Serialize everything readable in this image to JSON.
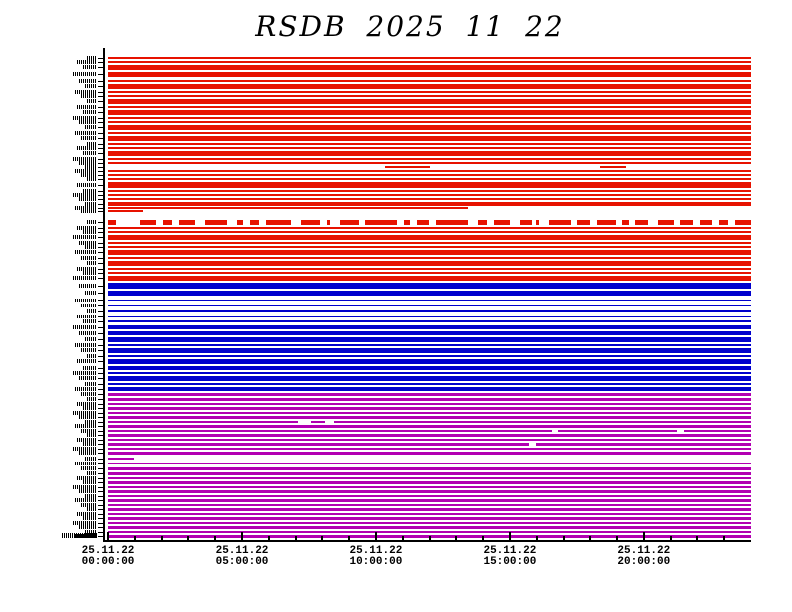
{
  "title": "RSDB 2025 11 22",
  "chart_data": {
    "type": "heatmap",
    "title": "RSDB 2025 11 22",
    "date": "25.11.22",
    "description": "Channel data-availability raster: one thin horizontal bar per channel, full day 00:00-24:00, three station groups colored red, blue and magenta; white stretches mark missing data",
    "colors": {
      "groups": [
        "#e71200",
        "#0000cd",
        "#b200b2"
      ],
      "axis": "#000000",
      "background": "#ffffff"
    },
    "x_axis": {
      "total_hours": 24,
      "minor_tick_every_hours": 1,
      "major_tick_hours": [
        0,
        5,
        10,
        15,
        20
      ],
      "tick_labels": [
        {
          "date": "25.11.22",
          "time": "00:00:00"
        },
        {
          "date": "25.11.22",
          "time": "05:00:00"
        },
        {
          "date": "25.11.22",
          "time": "10:00:00"
        },
        {
          "date": "25.11.22",
          "time": "15:00:00"
        },
        {
          "date": "25.11.22",
          "time": "20:00:00"
        }
      ]
    },
    "y_axis": {
      "row_count": 95,
      "channel_labels_illegible": true,
      "note": "tiny station/channel codes rendered ~3px tall, not readable at source resolution"
    },
    "row_format": "[group_index, bar_height_px, gap_after_px, optional coverage segments as fractions of 24h or the keyword dash]",
    "rows": [
      [
        0,
        2,
        2
      ],
      [
        0,
        2,
        2
      ],
      [
        0,
        5,
        2
      ],
      [
        0,
        5,
        3
      ],
      [
        0,
        2,
        2
      ],
      [
        0,
        5,
        2
      ],
      [
        0,
        2,
        2
      ],
      [
        0,
        2,
        2
      ],
      [
        0,
        5,
        2
      ],
      [
        0,
        2,
        2
      ],
      [
        0,
        5,
        2
      ],
      [
        0,
        2,
        2
      ],
      [
        0,
        2,
        2
      ],
      [
        0,
        5,
        2
      ],
      [
        0,
        2,
        2
      ],
      [
        0,
        5,
        2
      ],
      [
        0,
        2,
        2
      ],
      [
        0,
        2,
        2
      ],
      [
        0,
        5,
        2
      ],
      [
        0,
        2,
        2
      ],
      [
        0,
        2,
        2
      ],
      [
        0,
        2,
        2,
        [
          [
            0.43,
            0.5
          ],
          [
            0.765,
            0.805
          ]
        ]
      ],
      [
        0,
        2,
        2
      ],
      [
        0,
        2,
        2
      ],
      [
        0,
        2,
        2
      ],
      [
        0,
        6,
        2
      ],
      [
        0,
        2,
        2
      ],
      [
        0,
        2,
        2
      ],
      [
        0,
        2,
        2
      ],
      [
        0,
        4,
        1
      ],
      [
        0,
        2,
        1,
        [
          [
            0,
            0.56
          ]
        ]
      ],
      [
        0,
        2,
        8,
        [
          [
            0,
            0.055
          ]
        ]
      ],
      [
        0,
        5,
        2,
        "dash"
      ],
      [
        0,
        2,
        2
      ],
      [
        0,
        2,
        2
      ],
      [
        0,
        5,
        2
      ],
      [
        0,
        2,
        2
      ],
      [
        0,
        2,
        2
      ],
      [
        0,
        5,
        2
      ],
      [
        0,
        2,
        2
      ],
      [
        0,
        5,
        2
      ],
      [
        0,
        2,
        2
      ],
      [
        0,
        2,
        2
      ],
      [
        0,
        5,
        2
      ],
      [
        1,
        6,
        2
      ],
      [
        1,
        5,
        4
      ],
      [
        1,
        1,
        4
      ],
      [
        1,
        1,
        4
      ],
      [
        1,
        2,
        4
      ],
      [
        1,
        1,
        3
      ],
      [
        1,
        2,
        3
      ],
      [
        1,
        4,
        2
      ],
      [
        1,
        4,
        2
      ],
      [
        1,
        5,
        2
      ],
      [
        1,
        2,
        2
      ],
      [
        1,
        5,
        2
      ],
      [
        1,
        2,
        2
      ],
      [
        1,
        5,
        2
      ],
      [
        1,
        4,
        2
      ],
      [
        1,
        2,
        2
      ],
      [
        1,
        5,
        2
      ],
      [
        1,
        2,
        2
      ],
      [
        1,
        4,
        2
      ],
      [
        2,
        3,
        2
      ],
      [
        2,
        3,
        2
      ],
      [
        2,
        2,
        2
      ],
      [
        2,
        3,
        2
      ],
      [
        2,
        2,
        2
      ],
      [
        2,
        3,
        2
      ],
      [
        2,
        2,
        2,
        [
          [
            0,
            0.295
          ],
          [
            0.315,
            0.338
          ],
          [
            0.352,
            1
          ]
        ]
      ],
      [
        2,
        3,
        2
      ],
      [
        2,
        2,
        2,
        [
          [
            0,
            0.69
          ],
          [
            0.7,
            0.885
          ],
          [
            0.895,
            1
          ]
        ]
      ],
      [
        2,
        3,
        2
      ],
      [
        2,
        2,
        2
      ],
      [
        2,
        3,
        2,
        [
          [
            0,
            0.655
          ],
          [
            0.665,
            1
          ]
        ]
      ],
      [
        2,
        2,
        2
      ],
      [
        2,
        3,
        3
      ],
      [
        2,
        2,
        3,
        [
          [
            0,
            0.04
          ]
        ]
      ],
      [
        2,
        1,
        3
      ],
      [
        2,
        3,
        2
      ],
      [
        2,
        3,
        2
      ],
      [
        2,
        2,
        2
      ],
      [
        2,
        3,
        2
      ],
      [
        2,
        2,
        2
      ],
      [
        2,
        3,
        2
      ],
      [
        2,
        2,
        2
      ],
      [
        2,
        3,
        2
      ],
      [
        2,
        2,
        2
      ],
      [
        2,
        3,
        2
      ],
      [
        2,
        2,
        2
      ],
      [
        2,
        3,
        2
      ],
      [
        2,
        2,
        2
      ],
      [
        2,
        3,
        2
      ],
      [
        2,
        2,
        2
      ],
      [
        2,
        3,
        0
      ]
    ],
    "dash_segments": [
      [
        0.0,
        0.012
      ],
      [
        0.05,
        0.075
      ],
      [
        0.085,
        0.1
      ],
      [
        0.11,
        0.135
      ],
      [
        0.15,
        0.185
      ],
      [
        0.2,
        0.21
      ],
      [
        0.22,
        0.235
      ],
      [
        0.245,
        0.285
      ],
      [
        0.3,
        0.33
      ],
      [
        0.34,
        0.345
      ],
      [
        0.36,
        0.39
      ],
      [
        0.4,
        0.45
      ],
      [
        0.46,
        0.47
      ],
      [
        0.48,
        0.5
      ],
      [
        0.51,
        0.56
      ],
      [
        0.575,
        0.59
      ],
      [
        0.6,
        0.625
      ],
      [
        0.64,
        0.66
      ],
      [
        0.665,
        0.67
      ],
      [
        0.685,
        0.72
      ],
      [
        0.73,
        0.75
      ],
      [
        0.76,
        0.79
      ],
      [
        0.8,
        0.81
      ],
      [
        0.82,
        0.84
      ],
      [
        0.855,
        0.88
      ],
      [
        0.89,
        0.91
      ],
      [
        0.92,
        0.94
      ],
      [
        0.95,
        0.965
      ],
      [
        0.975,
        1.0
      ]
    ],
    "notable_rows": [
      {
        "group": "red",
        "coverage": "mostly missing; short data segments ~10:20-12:00 and ~18:25-19:15"
      },
      {
        "group": "red",
        "coverage": "data 00:00-~13:30, missing afterwards"
      },
      {
        "group": "red",
        "coverage": "data 00:00-~01:20, missing afterwards"
      },
      {
        "group": "red",
        "coverage": "intermittent (dashed) coverage across the whole day"
      },
      {
        "group": "magenta",
        "coverage": "small dropouts around ~07:30 and ~08:30"
      },
      {
        "group": "magenta",
        "coverage": "data 00:00-~01:00, missing afterwards"
      }
    ]
  }
}
